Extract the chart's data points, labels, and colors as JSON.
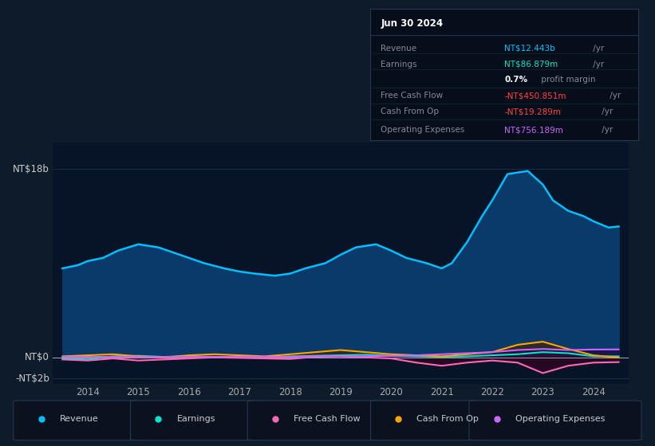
{
  "bg_color": "#0d1b2a",
  "chart_bg_color": "#071428",
  "y_label_top": "NT$18b",
  "y_label_zero": "NT$0",
  "y_label_neg": "-NT$2b",
  "ylim_min": -2.5,
  "ylim_max": 20.5,
  "x_ticks": [
    2014,
    2015,
    2016,
    2017,
    2018,
    2019,
    2020,
    2021,
    2022,
    2023,
    2024
  ],
  "legend": [
    {
      "label": "Revenue",
      "color": "#00bfff"
    },
    {
      "label": "Earnings",
      "color": "#00e5cc"
    },
    {
      "label": "Free Cash Flow",
      "color": "#ff69b4"
    },
    {
      "label": "Cash From Op",
      "color": "#ffa500"
    },
    {
      "label": "Operating Expenses",
      "color": "#cc66ff"
    }
  ],
  "tooltip_date": "Jun 30 2024",
  "tooltip_rows": [
    {
      "label": "Revenue",
      "value": "NT$12.443b",
      "value_color": "#00bfff",
      "suffix": " /yr",
      "extra": ""
    },
    {
      "label": "Earnings",
      "value": "NT$86.879m",
      "value_color": "#00e5cc",
      "suffix": " /yr",
      "extra": ""
    },
    {
      "label": "",
      "value": "0.7%",
      "value_color": "#ffffff",
      "suffix": " profit margin",
      "extra": "bold_value"
    },
    {
      "label": "Free Cash Flow",
      "value": "-NT$450.851m",
      "value_color": "#ff4444",
      "suffix": " /yr",
      "extra": ""
    },
    {
      "label": "Cash From Op",
      "value": "-NT$19.289m",
      "value_color": "#ff4444",
      "suffix": " /yr",
      "extra": ""
    },
    {
      "label": "Operating Expenses",
      "value": "NT$756.189m",
      "value_color": "#cc66ff",
      "suffix": " /yr",
      "extra": ""
    }
  ],
  "revenue_x": [
    2013.5,
    2013.8,
    2014.0,
    2014.3,
    2014.6,
    2015.0,
    2015.4,
    2015.7,
    2016.0,
    2016.3,
    2016.7,
    2017.0,
    2017.3,
    2017.7,
    2018.0,
    2018.3,
    2018.7,
    2019.0,
    2019.3,
    2019.7,
    2020.0,
    2020.3,
    2020.7,
    2021.0,
    2021.2,
    2021.5,
    2021.8,
    2022.0,
    2022.3,
    2022.7,
    2023.0,
    2023.2,
    2023.5,
    2023.8,
    2024.0,
    2024.3,
    2024.5
  ],
  "revenue_y": [
    8.5,
    8.8,
    9.2,
    9.5,
    10.2,
    10.8,
    10.5,
    10.0,
    9.5,
    9.0,
    8.5,
    8.2,
    8.0,
    7.8,
    8.0,
    8.5,
    9.0,
    9.8,
    10.5,
    10.8,
    10.2,
    9.5,
    9.0,
    8.5,
    9.0,
    11.0,
    13.5,
    15.0,
    17.5,
    17.8,
    16.5,
    15.0,
    14.0,
    13.5,
    13.0,
    12.4,
    12.5
  ],
  "earnings_x": [
    2013.5,
    2014.0,
    2014.5,
    2015.0,
    2015.5,
    2016.0,
    2016.5,
    2017.0,
    2017.5,
    2018.0,
    2018.5,
    2019.0,
    2019.5,
    2020.0,
    2020.5,
    2021.0,
    2021.5,
    2022.0,
    2022.5,
    2023.0,
    2023.5,
    2024.0,
    2024.5
  ],
  "earnings_y": [
    -0.1,
    -0.2,
    0.1,
    0.15,
    0.05,
    0.1,
    0.05,
    0.0,
    0.05,
    0.1,
    0.15,
    0.2,
    0.25,
    0.15,
    0.1,
    0.05,
    0.1,
    0.2,
    0.3,
    0.5,
    0.4,
    0.1,
    0.1
  ],
  "fcf_x": [
    2013.5,
    2014.0,
    2014.5,
    2015.0,
    2015.5,
    2016.0,
    2016.5,
    2017.0,
    2017.5,
    2018.0,
    2018.5,
    2019.0,
    2019.5,
    2020.0,
    2020.5,
    2021.0,
    2021.5,
    2022.0,
    2022.5,
    2023.0,
    2023.5,
    2024.0,
    2024.5
  ],
  "fcf_y": [
    -0.2,
    -0.3,
    -0.1,
    -0.3,
    -0.2,
    -0.1,
    0.0,
    -0.05,
    -0.1,
    -0.15,
    0.05,
    0.1,
    0.0,
    -0.1,
    -0.5,
    -0.8,
    -0.5,
    -0.3,
    -0.5,
    -1.5,
    -0.8,
    -0.5,
    -0.45
  ],
  "cashop_x": [
    2013.5,
    2014.0,
    2014.5,
    2015.0,
    2015.5,
    2016.0,
    2016.5,
    2017.0,
    2017.5,
    2018.0,
    2018.5,
    2019.0,
    2019.5,
    2020.0,
    2020.5,
    2021.0,
    2021.5,
    2022.0,
    2022.5,
    2023.0,
    2023.5,
    2024.0,
    2024.5
  ],
  "cashop_y": [
    0.1,
    0.2,
    0.3,
    0.1,
    0.0,
    0.2,
    0.3,
    0.2,
    0.1,
    0.3,
    0.5,
    0.7,
    0.5,
    0.3,
    0.2,
    0.1,
    0.3,
    0.5,
    1.2,
    1.5,
    0.8,
    0.2,
    -0.02
  ],
  "opex_x": [
    2013.5,
    2014.0,
    2014.5,
    2015.0,
    2015.5,
    2016.0,
    2016.5,
    2017.0,
    2017.5,
    2018.0,
    2018.5,
    2019.0,
    2019.5,
    2020.0,
    2020.5,
    2021.0,
    2021.5,
    2022.0,
    2022.5,
    2023.0,
    2023.5,
    2024.0,
    2024.5
  ],
  "opex_y": [
    0.05,
    0.05,
    0.05,
    0.05,
    0.05,
    0.05,
    0.05,
    0.05,
    0.05,
    0.05,
    0.1,
    0.1,
    0.1,
    0.15,
    0.2,
    0.3,
    0.4,
    0.5,
    0.7,
    0.8,
    0.7,
    0.75,
    0.76
  ]
}
